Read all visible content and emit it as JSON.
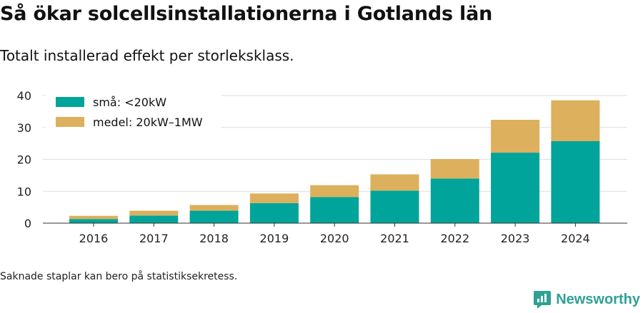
{
  "title": "Så ökar solcellsinstallationerna i Gotlands län",
  "subtitle": "Totalt installerad effekt per storleksklass.",
  "footnote": "Saknade staplar kan bero på statistiksekretess.",
  "brand": {
    "name": "Newsworthy",
    "icon": "newsworthy-logo-icon",
    "color": "#2fa193"
  },
  "colors": {
    "small": "#00a49a",
    "medium": "#dcb05c",
    "grid": "#dddddd",
    "axis": "#333333"
  },
  "chart_data": {
    "type": "bar",
    "stacked": true,
    "categories": [
      "2016",
      "2017",
      "2018",
      "2019",
      "2020",
      "2021",
      "2022",
      "2023",
      "2024"
    ],
    "series": [
      {
        "name": "små: <20kW",
        "color": "#00a49a",
        "values": [
          1.3,
          2.4,
          3.9,
          6.3,
          8.2,
          10.2,
          14.0,
          22.1,
          25.7
        ]
      },
      {
        "name": "medel: 20kW–1MW",
        "color": "#dcb05c",
        "values": [
          1.0,
          1.5,
          1.8,
          3.0,
          3.7,
          5.1,
          6.1,
          10.3,
          12.8
        ]
      }
    ],
    "title": "Så ökar solcellsinstallationerna i Gotlands län",
    "xlabel": "",
    "ylabel": "",
    "ylim": [
      0,
      40
    ],
    "yticks": [
      0,
      10,
      20,
      30,
      40
    ],
    "grid": true,
    "legend": "top-left"
  }
}
